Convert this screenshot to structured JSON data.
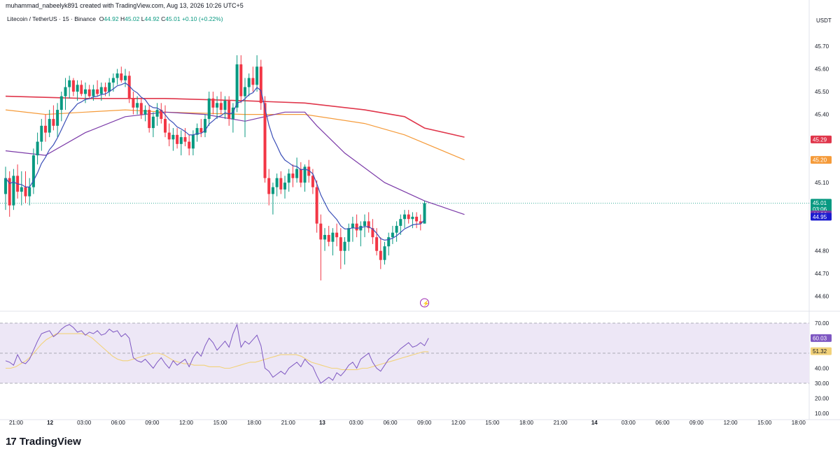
{
  "credit": "muhammad_nabeelyk891 created with TradingView.com, Aug 13, 2026 10:26 UTC+5",
  "header": {
    "symbol": "Litecoin / TetherUS · 15 · Binance",
    "o_label": "O",
    "o_value": "44.92",
    "h_label": "H",
    "h_value": "45.02",
    "l_label": "L",
    "l_value": "44.92",
    "c_label": "C",
    "c_value": "45.01",
    "change": "+0.10 (+0.22%)"
  },
  "footer": {
    "logo_mark": "17",
    "logo_text": "TradingView"
  },
  "colors": {
    "up": "#089981",
    "down": "#f23645",
    "ma_red": "#e0364b",
    "ma_orange": "#f59b3a",
    "ma_purple": "#7b3aa8",
    "ema_blue": "#3b4fb8",
    "rsi_line": "#7e57c2",
    "rsi_ma": "#f2d27a",
    "rsi_band": "#ede7f6"
  },
  "chart_data": [
    {
      "type": "candlestick",
      "currency": "USDT",
      "ylim": [
        44.55,
        45.78
      ],
      "y_ticks": [
        "45.70",
        "45.60",
        "45.50",
        "45.40",
        "45.10",
        "44.80",
        "44.70",
        "44.60"
      ],
      "x_ticks": [
        "21:00",
        "12",
        "03:00",
        "06:00",
        "09:00",
        "12:00",
        "15:00",
        "18:00",
        "21:00",
        "13",
        "03:00",
        "06:00",
        "09:00",
        "12:00",
        "15:00",
        "18:00",
        "21:00",
        "14",
        "03:00",
        "06:00",
        "09:00",
        "12:00",
        "15:00",
        "18:00"
      ],
      "price_labels": [
        {
          "text": "45.29",
          "value": 45.29,
          "color": "#e0364b"
        },
        {
          "text": "45.20",
          "value": 45.2,
          "color": "#f59b3a"
        },
        {
          "text": "45.01",
          "value": 45.01,
          "color": "#089981",
          "countdown": "03:06"
        },
        {
          "text": "44.96",
          "value": 44.96,
          "color": "#7b3aa8"
        },
        {
          "text": "44.95",
          "value": 44.95,
          "color": "#1c1ccf"
        }
      ],
      "last_price": 45.01,
      "ma_red": [
        [
          0,
          45.48
        ],
        [
          20,
          45.47
        ],
        [
          40,
          45.47
        ],
        [
          60,
          45.46
        ],
        [
          75,
          45.45
        ],
        [
          90,
          45.42
        ],
        [
          100,
          45.39
        ],
        [
          105,
          45.34
        ],
        [
          115,
          45.3
        ]
      ],
      "ma_orange": [
        [
          0,
          45.42
        ],
        [
          10,
          45.4
        ],
        [
          20,
          45.41
        ],
        [
          30,
          45.42
        ],
        [
          40,
          45.41
        ],
        [
          60,
          45.4
        ],
        [
          75,
          45.4
        ],
        [
          90,
          45.36
        ],
        [
          100,
          45.31
        ],
        [
          115,
          45.2
        ]
      ],
      "ma_purple": [
        [
          0,
          45.24
        ],
        [
          10,
          45.22
        ],
        [
          20,
          45.32
        ],
        [
          30,
          45.39
        ],
        [
          40,
          45.41
        ],
        [
          50,
          45.4
        ],
        [
          60,
          45.37
        ],
        [
          70,
          45.41
        ],
        [
          75,
          45.41
        ],
        [
          78,
          45.35
        ],
        [
          85,
          45.23
        ],
        [
          95,
          45.1
        ],
        [
          105,
          45.02
        ],
        [
          115,
          44.96
        ]
      ],
      "ohlc": [
        [
          45.05,
          45.17,
          44.98,
          45.12
        ],
        [
          45.12,
          45.15,
          44.95,
          45.0
        ],
        [
          45.0,
          45.16,
          44.98,
          45.13
        ],
        [
          45.13,
          45.18,
          45.03,
          45.06
        ],
        [
          45.06,
          45.15,
          45.0,
          45.08
        ],
        [
          45.08,
          45.15,
          45.01,
          45.04
        ],
        [
          45.04,
          45.12,
          45.0,
          45.08
        ],
        [
          45.08,
          45.25,
          45.05,
          45.22
        ],
        [
          45.22,
          45.32,
          45.18,
          45.28
        ],
        [
          45.28,
          45.38,
          45.24,
          45.35
        ],
        [
          45.35,
          45.4,
          45.28,
          45.32
        ],
        [
          45.32,
          45.42,
          45.3,
          45.38
        ],
        [
          45.38,
          45.44,
          45.33,
          45.35
        ],
        [
          45.35,
          45.45,
          45.3,
          45.42
        ],
        [
          45.42,
          45.5,
          45.37,
          45.48
        ],
        [
          45.48,
          45.56,
          45.42,
          45.52
        ],
        [
          45.52,
          45.57,
          45.47,
          45.55
        ],
        [
          45.55,
          45.56,
          45.48,
          45.5
        ],
        [
          45.5,
          45.55,
          45.46,
          45.53
        ],
        [
          45.53,
          45.55,
          45.48,
          45.49
        ],
        [
          45.49,
          45.54,
          45.45,
          45.51
        ],
        [
          45.51,
          45.53,
          45.47,
          45.48
        ],
        [
          45.48,
          45.53,
          45.46,
          45.51
        ],
        [
          45.51,
          45.55,
          45.48,
          45.49
        ],
        [
          45.49,
          45.54,
          45.46,
          45.52
        ],
        [
          45.52,
          45.54,
          45.48,
          45.5
        ],
        [
          45.5,
          45.56,
          45.48,
          45.54
        ],
        [
          45.54,
          45.58,
          45.5,
          45.56
        ],
        [
          45.56,
          45.6,
          45.53,
          45.58
        ],
        [
          45.58,
          45.61,
          45.54,
          45.55
        ],
        [
          45.55,
          45.6,
          45.52,
          45.57
        ],
        [
          45.57,
          45.59,
          45.45,
          45.47
        ],
        [
          45.47,
          45.5,
          45.4,
          45.43
        ],
        [
          45.43,
          45.48,
          45.4,
          45.45
        ],
        [
          45.45,
          45.47,
          45.38,
          45.4
        ],
        [
          45.4,
          45.44,
          45.37,
          45.42
        ],
        [
          45.42,
          45.44,
          45.32,
          45.34
        ],
        [
          45.34,
          45.41,
          45.3,
          45.39
        ],
        [
          45.39,
          45.45,
          45.35,
          45.42
        ],
        [
          45.42,
          45.45,
          45.36,
          45.38
        ],
        [
          45.38,
          45.44,
          45.3,
          45.32
        ],
        [
          45.32,
          45.36,
          45.26,
          45.29
        ],
        [
          45.29,
          45.34,
          45.24,
          45.31
        ],
        [
          45.31,
          45.34,
          45.25,
          45.27
        ],
        [
          45.27,
          45.33,
          45.22,
          45.3
        ],
        [
          45.3,
          45.34,
          45.26,
          45.28
        ],
        [
          45.28,
          45.31,
          45.22,
          45.25
        ],
        [
          45.25,
          45.33,
          45.22,
          45.31
        ],
        [
          45.31,
          45.36,
          45.28,
          45.34
        ],
        [
          45.34,
          45.38,
          45.3,
          45.32
        ],
        [
          45.32,
          45.4,
          45.3,
          45.38
        ],
        [
          45.38,
          45.5,
          45.35,
          45.47
        ],
        [
          45.47,
          45.5,
          45.4,
          45.43
        ],
        [
          45.43,
          45.48,
          45.38,
          45.45
        ],
        [
          45.45,
          45.5,
          45.4,
          45.42
        ],
        [
          45.42,
          45.48,
          45.38,
          45.46
        ],
        [
          45.46,
          45.48,
          45.35,
          45.38
        ],
        [
          45.38,
          45.45,
          45.32,
          45.43
        ],
        [
          45.43,
          45.66,
          45.41,
          45.62
        ],
        [
          45.62,
          45.66,
          45.45,
          45.48
        ],
        [
          45.48,
          45.56,
          45.3,
          45.52
        ],
        [
          45.52,
          45.58,
          45.48,
          45.56
        ],
        [
          45.56,
          45.61,
          45.5,
          45.53
        ],
        [
          45.53,
          45.66,
          45.5,
          45.61
        ],
        [
          45.61,
          45.64,
          45.42,
          45.45
        ],
        [
          45.45,
          45.48,
          45.1,
          45.12
        ],
        [
          45.12,
          45.16,
          45.0,
          45.05
        ],
        [
          45.05,
          45.1,
          44.96,
          45.08
        ],
        [
          45.08,
          45.14,
          45.04,
          45.12
        ],
        [
          45.12,
          45.15,
          45.05,
          45.07
        ],
        [
          45.07,
          45.13,
          45.03,
          45.1
        ],
        [
          45.1,
          45.16,
          45.06,
          45.14
        ],
        [
          45.14,
          45.18,
          45.08,
          45.12
        ],
        [
          45.12,
          45.21,
          45.1,
          45.16
        ],
        [
          45.16,
          45.19,
          45.08,
          45.1
        ],
        [
          45.1,
          45.18,
          45.06,
          45.17
        ],
        [
          45.17,
          45.2,
          45.1,
          45.13
        ],
        [
          45.13,
          45.16,
          45.05,
          45.08
        ],
        [
          45.08,
          45.11,
          44.88,
          44.92
        ],
        [
          44.92,
          44.96,
          44.67,
          44.85
        ],
        [
          44.85,
          44.9,
          44.8,
          44.87
        ],
        [
          44.87,
          44.91,
          44.82,
          44.84
        ],
        [
          44.84,
          44.9,
          44.78,
          44.88
        ],
        [
          44.88,
          44.92,
          44.82,
          44.86
        ],
        [
          44.86,
          44.9,
          44.72,
          44.8
        ],
        [
          44.8,
          44.86,
          44.74,
          44.84
        ],
        [
          44.84,
          44.92,
          44.8,
          44.9
        ],
        [
          44.9,
          44.95,
          44.84,
          44.92
        ],
        [
          44.92,
          44.96,
          44.86,
          44.89
        ],
        [
          44.89,
          44.93,
          44.82,
          44.91
        ],
        [
          44.91,
          44.96,
          44.86,
          44.93
        ],
        [
          44.93,
          44.97,
          44.88,
          44.9
        ],
        [
          44.9,
          44.94,
          44.83,
          44.86
        ],
        [
          44.86,
          44.9,
          44.78,
          44.8
        ],
        [
          44.8,
          44.86,
          44.72,
          44.76
        ],
        [
          44.76,
          44.84,
          44.74,
          44.82
        ],
        [
          44.82,
          44.88,
          44.78,
          44.86
        ],
        [
          44.86,
          44.91,
          44.83,
          44.88
        ],
        [
          44.88,
          44.93,
          44.84,
          44.91
        ],
        [
          44.91,
          44.96,
          44.87,
          44.94
        ],
        [
          44.94,
          44.98,
          44.9,
          44.96
        ],
        [
          44.96,
          44.98,
          44.92,
          44.94
        ],
        [
          44.94,
          44.97,
          44.9,
          44.95
        ],
        [
          44.95,
          44.97,
          44.9,
          44.93
        ],
        [
          44.93,
          44.96,
          44.89,
          44.92
        ],
        [
          44.92,
          45.02,
          44.92,
          45.01
        ]
      ]
    },
    {
      "type": "line",
      "name": "RSI",
      "ylim": [
        10,
        70
      ],
      "y_ticks": [
        "70.00",
        "40.00",
        "30.00",
        "20.00",
        "10.00"
      ],
      "band": [
        30,
        70
      ],
      "midline": 50,
      "value_labels": [
        {
          "text": "60.03",
          "value": 60.03,
          "color": "#7e57c2"
        },
        {
          "text": "51.32",
          "value": 51.32,
          "color": "#f2d27a"
        }
      ],
      "rsi": [
        45,
        44,
        42,
        49,
        44,
        43,
        46,
        52,
        58,
        63,
        64,
        65,
        61,
        63,
        66,
        68,
        69,
        67,
        64,
        65,
        62,
        64,
        63,
        65,
        62,
        63,
        66,
        64,
        65,
        61,
        63,
        60,
        47,
        45,
        44,
        46,
        43,
        40,
        44,
        47,
        43,
        40,
        45,
        42,
        44,
        46,
        41,
        47,
        51,
        48,
        55,
        60,
        57,
        52,
        55,
        58,
        54,
        63,
        69,
        54,
        58,
        56,
        59,
        62,
        55,
        40,
        38,
        34,
        36,
        38,
        36,
        40,
        42,
        44,
        41,
        46,
        43,
        41,
        35,
        30,
        32,
        34,
        32,
        37,
        35,
        38,
        42,
        44,
        40,
        46,
        48,
        50,
        44,
        40,
        38,
        42,
        46,
        48,
        50,
        53,
        55,
        57,
        54,
        55,
        57,
        55,
        60
      ],
      "rsi_ma": [
        40,
        40,
        41,
        43,
        45,
        48,
        52,
        56,
        59,
        61,
        63,
        63,
        63,
        63,
        63,
        63,
        62,
        60,
        57,
        54,
        51,
        48,
        46,
        45,
        45,
        46,
        47,
        48,
        49,
        50,
        50,
        49,
        47,
        45,
        44,
        43,
        43,
        42,
        42,
        42,
        41,
        41,
        41,
        40,
        40,
        41,
        42,
        43,
        44,
        44,
        45,
        46,
        47,
        48,
        49,
        49,
        49,
        49,
        48,
        46,
        44,
        43,
        42,
        41,
        40,
        40,
        39,
        39,
        39,
        39,
        40,
        40,
        41,
        42,
        43,
        44,
        45,
        46,
        47,
        48,
        49,
        50,
        51,
        51
      ]
    }
  ]
}
